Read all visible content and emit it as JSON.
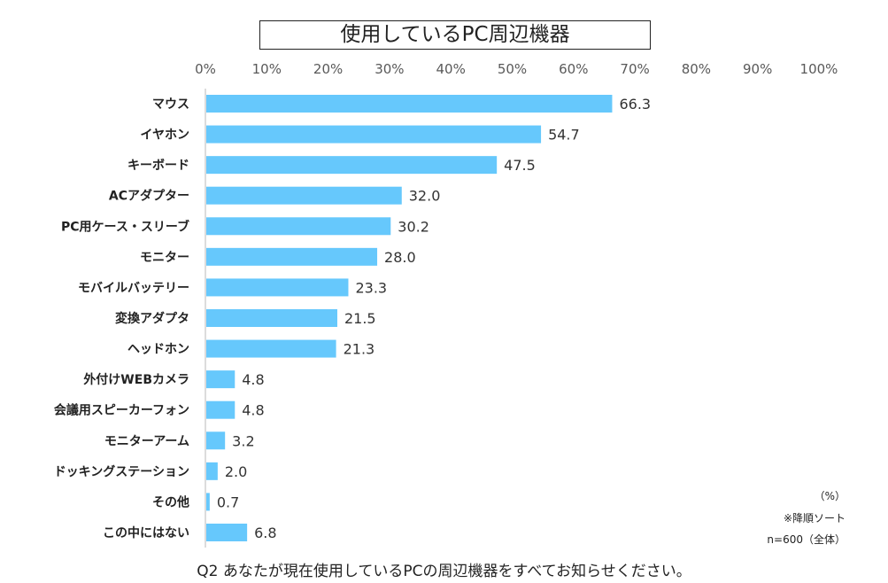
{
  "chart_data": {
    "type": "bar",
    "orientation": "horizontal",
    "title": "使用しているPC周辺機器",
    "categories": [
      "マウス",
      "イヤホン",
      "キーボード",
      "ACアダプター",
      "PC用ケース・スリーブ",
      "モニター",
      "モバイルバッテリー",
      "変換アダプタ",
      "ヘッドホン",
      "外付けWEBカメラ",
      "会議用スピーカーフォン",
      "モニターアーム",
      "ドッキングステーション",
      "その他",
      "この中にはない"
    ],
    "values": [
      66.3,
      54.7,
      47.5,
      32.0,
      30.2,
      28.0,
      23.3,
      21.5,
      21.3,
      4.8,
      4.8,
      3.2,
      2.0,
      0.7,
      6.8
    ],
    "xlim": [
      0,
      100
    ],
    "xticks": [
      "0%",
      "10%",
      "20%",
      "30%",
      "40%",
      "50%",
      "60%",
      "70%",
      "80%",
      "90%",
      "100%"
    ],
    "xlabel": "",
    "ylabel": "",
    "grid": false,
    "bar_color": "#66C8FC"
  },
  "notes": {
    "unit": "（%）",
    "sort": "※降順ソート",
    "sample": "n=600（全体）"
  },
  "question": "Q2 あなたが現在使用しているPCの周辺機器をすべてお知らせください。"
}
